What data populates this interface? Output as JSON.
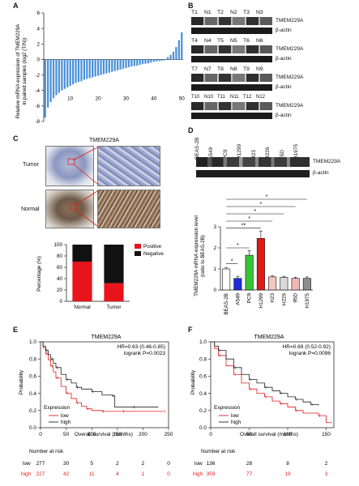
{
  "panels": {
    "A": "A",
    "B": "B",
    "C": "C",
    "D": "D",
    "E": "E",
    "F": "F"
  },
  "panelA": {
    "ylabel_line1": "Relative mRNA expression of TMEM229A",
    "ylabel_line2": "in paired samples (log2 (T/N))",
    "chart_data": {
      "type": "bar",
      "x": [
        1,
        2,
        3,
        4,
        5,
        6,
        7,
        8,
        9,
        10,
        11,
        12,
        13,
        14,
        15,
        16,
        17,
        18,
        19,
        20,
        21,
        22,
        23,
        24,
        25,
        26,
        27,
        28,
        29,
        30,
        31,
        32,
        33,
        34,
        35,
        36,
        37,
        38,
        39,
        40,
        41,
        42,
        43,
        44,
        45,
        46,
        47,
        48,
        49,
        50
      ],
      "values": [
        -7.5,
        -6.2,
        -5.5,
        -5.0,
        -4.6,
        -4.3,
        -4.0,
        -3.8,
        -3.6,
        -3.4,
        -3.2,
        -3.0,
        -2.9,
        -2.8,
        -2.6,
        -2.5,
        -2.4,
        -2.3,
        -2.2,
        -2.1,
        -2.0,
        -1.9,
        -1.8,
        -1.7,
        -1.6,
        -1.5,
        -1.4,
        -1.3,
        -1.2,
        -1.1,
        -1.0,
        -0.9,
        -0.85,
        -0.8,
        -0.7,
        -0.6,
        -0.55,
        -0.5,
        -0.4,
        -0.3,
        -0.25,
        -0.2,
        -0.15,
        -0.1,
        0.3,
        0.6,
        1.0,
        1.6,
        2.5,
        3.5
      ],
      "ylim": [
        -8,
        6
      ],
      "yticks": [
        "6",
        "4",
        "2",
        "0",
        "-2",
        "-4",
        "-6",
        "-8"
      ],
      "xticks": [
        "10",
        "20",
        "30",
        "40",
        "50"
      ],
      "color": "#4a90d9"
    }
  },
  "panelB": {
    "rows": [
      {
        "lanes": [
          "T1",
          "N1",
          "T2",
          "N2",
          "T3",
          "N3"
        ],
        "target": "TMEM229A",
        "control": "β-actin"
      },
      {
        "lanes": [
          "T4",
          "N4",
          "T5",
          "N5",
          "T6",
          "N6"
        ],
        "target": "TMEM229A",
        "control": "β-actin"
      },
      {
        "lanes": [
          "T7",
          "N7",
          "T8",
          "N8",
          "T9",
          "N9"
        ],
        "target": "TMEM229A",
        "control": "β-actin"
      },
      {
        "lanes": [
          "T10",
          "N10",
          "T11",
          "N11",
          "T12",
          "N12"
        ],
        "target": "TMEM229A",
        "control": "β-actin"
      }
    ]
  },
  "panelC": {
    "title": "TMEM229A",
    "tumor_label": "Tumor",
    "normal_label": "Normal",
    "chart_data": {
      "type": "bar",
      "categories": [
        "Normal",
        "Tumor"
      ],
      "series": [
        {
          "name": "Positive",
          "values": [
            70,
            32
          ]
        },
        {
          "name": "Negative",
          "values": [
            30,
            68
          ]
        }
      ],
      "ylabel": "Percentage (%)",
      "ylim": [
        0,
        100
      ],
      "yticks": [
        "0",
        "20",
        "40",
        "60",
        "80",
        "100"
      ],
      "colors": [
        "#e8141b",
        "#111111"
      ]
    }
  },
  "panelD": {
    "lanes": [
      "BEAS-2B",
      "A549",
      "PC9",
      "H1299",
      "H23",
      "H226",
      "95D",
      "H1975"
    ],
    "target": "TMEM229A",
    "control": "β-actin",
    "chart_data": {
      "type": "bar",
      "categories": [
        "BEAS-2B",
        "A549",
        "PC9",
        "H1299",
        "H23",
        "H226",
        "95D",
        "H1975"
      ],
      "values": [
        1.0,
        0.55,
        1.65,
        2.45,
        0.62,
        0.6,
        0.55,
        0.55
      ],
      "errors": [
        0.05,
        0.1,
        0.22,
        0.35,
        0.05,
        0.05,
        0.06,
        0.07
      ],
      "colors": [
        "#ffffff",
        "#1f2ed6",
        "#35c435",
        "#e01818",
        "#f2c8c0",
        "#d8d8d8",
        "#f3b7b7",
        "#8e8e8e"
      ],
      "ylabel_line1": "TMEM229A mRNA expression level",
      "ylabel_line2": "(ratio to BEAS-2B)",
      "ylim": [
        0,
        3
      ],
      "yticks": [
        "0",
        "1",
        "2",
        "3"
      ],
      "sig": [
        "*",
        "*",
        "**",
        "*",
        "*",
        "*",
        "*"
      ]
    }
  },
  "panelE": {
    "title": "TMEM229A",
    "stats_line1": "HR=0.63 (0.46-0.85)",
    "stats_line2": "logrank P=0.0023",
    "ylabel": "Probability",
    "xlabel": "Overall survival (months)",
    "legend_title": "Expression",
    "legend_low": "low",
    "legend_high": "high",
    "risk_title": "Number at risk",
    "risk_low_label": "low",
    "risk_high_label": "high",
    "risk_low": [
      "277",
      "30",
      "5",
      "2",
      "2",
      "0"
    ],
    "risk_high": [
      "227",
      "42",
      "11",
      "4",
      "1",
      "0"
    ],
    "chart_data": {
      "type": "line",
      "xlim": [
        0,
        250
      ],
      "ylim": [
        0,
        1
      ],
      "xticks": [
        "0",
        "50",
        "100",
        "150",
        "200",
        "250"
      ],
      "yticks": [
        "0.0",
        "0.2",
        "0.4",
        "0.6",
        "0.8",
        "1.0"
      ],
      "series": [
        {
          "name": "low",
          "x": [
            0,
            5,
            10,
            15,
            20,
            25,
            30,
            40,
            50,
            60,
            70,
            80,
            90,
            100,
            120,
            140,
            160,
            190,
            240
          ],
          "y": [
            1,
            0.93,
            0.86,
            0.79,
            0.72,
            0.65,
            0.58,
            0.48,
            0.4,
            0.34,
            0.29,
            0.25,
            0.22,
            0.2,
            0.19,
            0.19,
            0.19,
            0.19,
            0.19
          ]
        },
        {
          "name": "high",
          "x": [
            0,
            5,
            10,
            15,
            20,
            25,
            30,
            40,
            50,
            60,
            70,
            80,
            100,
            120,
            140,
            145,
            180,
            230
          ],
          "y": [
            1,
            0.95,
            0.9,
            0.85,
            0.8,
            0.75,
            0.7,
            0.62,
            0.56,
            0.52,
            0.47,
            0.45,
            0.42,
            0.38,
            0.37,
            0.24,
            0.24,
            0.24
          ]
        }
      ]
    }
  },
  "panelF": {
    "title": "TMEM229A",
    "stats_line1": "HR=0.69 (0.52-0.92)",
    "stats_line2": "logrank P=0.0096",
    "ylabel": "Probability",
    "xlabel": "Overall survival (months)",
    "legend_title": "Expression",
    "legend_low": "low",
    "legend_high": "high",
    "risk_title": "Number at risk",
    "risk_low_label": "low",
    "risk_high_label": "high",
    "risk_low": [
      "136",
      "28",
      "8",
      "2"
    ],
    "risk_high": [
      "359",
      "77",
      "19",
      "3"
    ],
    "chart_data": {
      "type": "line",
      "xlim": [
        0,
        160
      ],
      "ylim": [
        0,
        1
      ],
      "xticks": [
        "0",
        "50",
        "100",
        "150"
      ],
      "yticks": [
        "0.0",
        "0.2",
        "0.4",
        "0.6",
        "0.8",
        "1.0"
      ],
      "series": [
        {
          "name": "low",
          "x": [
            0,
            5,
            10,
            20,
            30,
            40,
            50,
            60,
            70,
            80,
            90,
            100,
            110,
            120,
            140,
            150,
            155
          ],
          "y": [
            1,
            0.92,
            0.84,
            0.72,
            0.62,
            0.52,
            0.45,
            0.4,
            0.36,
            0.31,
            0.28,
            0.24,
            0.2,
            0.17,
            0.14,
            0.06,
            0.06
          ]
        },
        {
          "name": "high",
          "x": [
            0,
            5,
            10,
            20,
            30,
            40,
            50,
            60,
            70,
            80,
            90,
            100,
            110,
            120,
            130,
            140
          ],
          "y": [
            1,
            0.95,
            0.9,
            0.8,
            0.7,
            0.62,
            0.56,
            0.52,
            0.47,
            0.43,
            0.4,
            0.36,
            0.33,
            0.3,
            0.27,
            0.26
          ]
        }
      ]
    }
  }
}
